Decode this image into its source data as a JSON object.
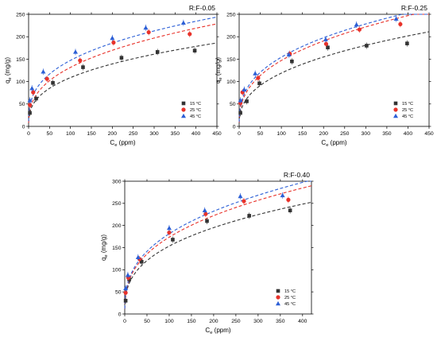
{
  "chart_data": [
    {
      "type": "scatter",
      "title": "R:F-0.05",
      "xlabel": "C",
      "xlabel_sub": "e",
      "xlabel_unit": " (ppm)",
      "ylabel": "q",
      "ylabel_sub": "e",
      "ylabel_unit": " (mg/g)",
      "xlim": [
        0,
        450
      ],
      "ylim": [
        0,
        250
      ],
      "xticks": [
        0,
        50,
        100,
        150,
        200,
        250,
        300,
        350,
        400,
        450
      ],
      "yticks": [
        0,
        50,
        100,
        150,
        200,
        250
      ],
      "legend_position": "bottom-right",
      "series": [
        {
          "name": "15 °C",
          "color": "#333333",
          "marker": "square",
          "points": [
            [
              3,
              30
            ],
            [
              18,
              62
            ],
            [
              58,
              97
            ],
            [
              130,
              132
            ],
            [
              222,
              153
            ],
            [
              308,
              166
            ],
            [
              397,
              169
            ]
          ],
          "fit": {
            "K": 21,
            "n": 2.8
          }
        },
        {
          "name": "25 °C",
          "color": "#e8322a",
          "marker": "circle",
          "points": [
            [
              3,
              48
            ],
            [
              11,
              76
            ],
            [
              44,
              106
            ],
            [
              123,
              147
            ],
            [
              203,
              187
            ],
            [
              287,
              210
            ],
            [
              385,
              206
            ]
          ],
          "fit": {
            "K": 24.2,
            "n": 2.72
          }
        },
        {
          "name": "45 °C",
          "color": "#2c5fd6",
          "marker": "triangle",
          "points": [
            [
              3,
              58
            ],
            [
              8,
              85
            ],
            [
              35,
              122
            ],
            [
              112,
              166
            ],
            [
              200,
              197
            ],
            [
              280,
              220
            ],
            [
              370,
              231
            ]
          ],
          "fit": {
            "K": 31.4,
            "n": 2.98
          }
        }
      ]
    },
    {
      "type": "scatter",
      "title": "R:F-0.25",
      "xlabel": "C",
      "xlabel_sub": "e",
      "xlabel_unit": " (ppm)",
      "ylabel": "q",
      "ylabel_sub": "e",
      "ylabel_unit": " (mg/g)",
      "xlim": [
        0,
        450
      ],
      "ylim": [
        0,
        250
      ],
      "xticks": [
        0,
        50,
        100,
        150,
        200,
        250,
        300,
        350,
        400,
        450
      ],
      "yticks": [
        0,
        50,
        100,
        150,
        200,
        250
      ],
      "legend_position": "bottom-right",
      "series": [
        {
          "name": "15 °C",
          "color": "#333333",
          "marker": "square",
          "points": [
            [
              3,
              30
            ],
            [
              18,
              56
            ],
            [
              48,
              96
            ],
            [
              125,
              145
            ],
            [
              210,
              176
            ],
            [
              302,
              180
            ],
            [
              398,
              185
            ]
          ],
          "fit": {
            "K": 20.5,
            "n": 2.62
          }
        },
        {
          "name": "25 °C",
          "color": "#e8322a",
          "marker": "circle",
          "points": [
            [
              3,
              52
            ],
            [
              8,
              76
            ],
            [
              45,
              108
            ],
            [
              120,
              162
            ],
            [
              206,
              184
            ],
            [
              285,
              216
            ],
            [
              382,
              228
            ]
          ],
          "fit": {
            "K": 26.2,
            "n": 2.67
          }
        },
        {
          "name": "45 °C",
          "color": "#2c5fd6",
          "marker": "triangle",
          "points": [
            [
              3,
              58
            ],
            [
              12,
              82
            ],
            [
              38,
              118
            ],
            [
              118,
              160
            ],
            [
              205,
              194
            ],
            [
              278,
              227
            ],
            [
              372,
              240
            ]
          ],
          "fit": {
            "K": 29.8,
            "n": 2.8
          }
        }
      ]
    },
    {
      "type": "scatter",
      "title": "R:F-0.40",
      "xlabel": "C",
      "xlabel_sub": "e",
      "xlabel_unit": " (ppm)",
      "ylabel": "q",
      "ylabel_sub": "e",
      "ylabel_unit": " (mg/g)",
      "xlim": [
        0,
        420
      ],
      "ylim": [
        0,
        300
      ],
      "xticks": [
        0,
        50,
        100,
        150,
        200,
        250,
        300,
        350,
        400
      ],
      "yticks": [
        0,
        50,
        100,
        150,
        200,
        250,
        300
      ],
      "legend_position": "bottom-right",
      "series": [
        {
          "name": "15 °C",
          "color": "#333333",
          "marker": "square",
          "points": [
            [
              2,
              30
            ],
            [
              10,
              78
            ],
            [
              38,
              118
            ],
            [
              108,
              168
            ],
            [
              185,
              210
            ],
            [
              280,
              222
            ],
            [
              372,
              234
            ]
          ],
          "fit": {
            "K": 31,
            "n": 2.88
          }
        },
        {
          "name": "25 °C",
          "color": "#e8322a",
          "marker": "circle",
          "points": [
            [
              2,
              48
            ],
            [
              8,
              82
            ],
            [
              33,
              124
            ],
            [
              100,
              184
            ],
            [
              182,
              226
            ],
            [
              268,
              255
            ],
            [
              368,
              258
            ]
          ],
          "fit": {
            "K": 33.5,
            "n": 2.8
          }
        },
        {
          "name": "45 °C",
          "color": "#2c5fd6",
          "marker": "triangle",
          "points": [
            [
              2,
              58
            ],
            [
              7,
              88
            ],
            [
              30,
              128
            ],
            [
              100,
              194
            ],
            [
              180,
              234
            ],
            [
              260,
              266
            ],
            [
              355,
              268
            ]
          ],
          "fit": {
            "K": 35,
            "n": 2.8
          }
        }
      ]
    }
  ]
}
